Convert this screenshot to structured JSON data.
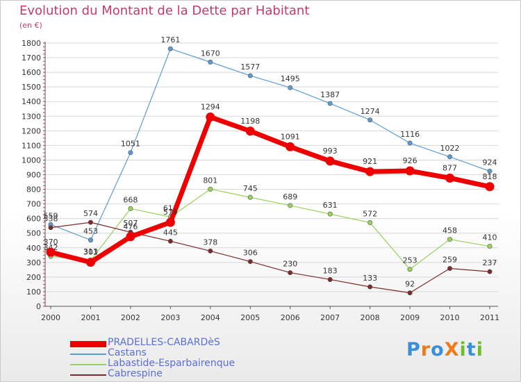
{
  "title": "Evolution du Montant de la Dette par Habitant",
  "unit": "(en €)",
  "logo": {
    "text": "ProXiti",
    "letters": [
      "P",
      "r",
      "o",
      "X",
      "i",
      "t",
      "i"
    ],
    "colors": [
      "#3a8fd9",
      "#f07a1a",
      "#3a8fd9",
      "#f07a1a",
      "#6cbf2e",
      "#3a8fd9",
      "#6cbf2e"
    ]
  },
  "chart_data": {
    "type": "line",
    "categories": [
      "2000",
      "2001",
      "2002",
      "2003",
      "2004",
      "2005",
      "2006",
      "2007",
      "2008",
      "2009",
      "2010",
      "2011"
    ],
    "ylim": [
      0,
      1800
    ],
    "yticks": [
      0,
      100,
      200,
      300,
      400,
      500,
      600,
      700,
      800,
      900,
      1000,
      1100,
      1200,
      1300,
      1400,
      1500,
      1600,
      1700,
      1800
    ],
    "grid": true,
    "legend_position": "bottom-left",
    "series": [
      {
        "name": "PRADELLES-CABARDèS",
        "color": "#ee0000",
        "values": [
          370,
          301,
          476,
          574,
          1294,
          1198,
          1091,
          993,
          921,
          926,
          877,
          818
        ],
        "labels": [
          "370",
          "301",
          "476",
          "574",
          "1294",
          "1198",
          "1091",
          "993",
          "921",
          "926",
          "877",
          "818"
        ]
      },
      {
        "name": "Castans",
        "color": "#5b9bd1",
        "values": [
          559,
          453,
          1051,
          1761,
          1670,
          1577,
          1495,
          1387,
          1274,
          1116,
          1022,
          924
        ],
        "labels": [
          "559",
          "453",
          "1051",
          "1761",
          "1670",
          "1577",
          "1495",
          "1387",
          "1274",
          "1116",
          "1022",
          "924"
        ]
      },
      {
        "name": "Labastide-Esparbairenque",
        "color": "#98d35c",
        "values": [
          342,
          313,
          668,
          611,
          801,
          745,
          689,
          631,
          572,
          253,
          458,
          410
        ],
        "labels": [
          "342",
          "313",
          "668",
          "611",
          "801",
          "745",
          "689",
          "631",
          "572",
          "253",
          "458",
          "410"
        ]
      },
      {
        "name": "Cabrespine",
        "color": "#7a2b2b",
        "values": [
          538,
          574,
          507,
          445,
          378,
          306,
          230,
          183,
          133,
          92,
          259,
          237
        ],
        "labels": [
          "538",
          "574",
          "507",
          "445",
          "378",
          "306",
          "230",
          "183",
          "133",
          "92",
          "259",
          "237"
        ]
      }
    ]
  }
}
